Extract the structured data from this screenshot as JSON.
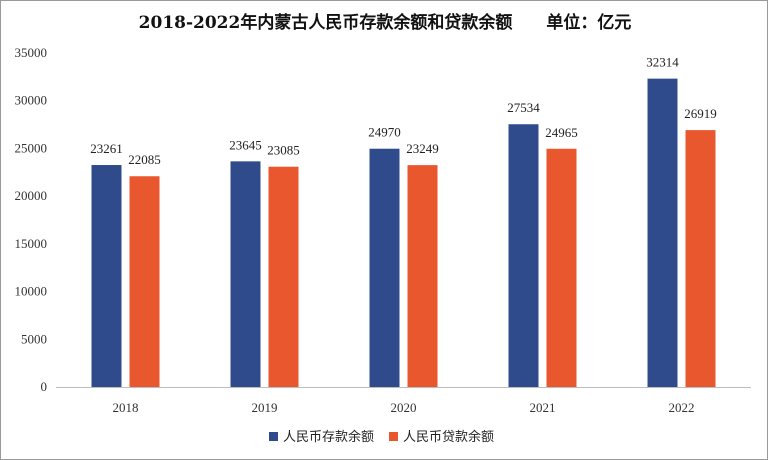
{
  "chart_data": {
    "type": "bar",
    "title": "2018-2022年内蒙古人民币存款余额和贷款余额　　单位：亿元",
    "categories": [
      "2018",
      "2019",
      "2020",
      "2021",
      "2022"
    ],
    "series": [
      {
        "name": "人民币存款余额",
        "values": [
          23261,
          23645,
          24970,
          27534,
          32314
        ],
        "color": "#2f4b8c"
      },
      {
        "name": "人民币贷款余额",
        "values": [
          22085,
          23085,
          23249,
          24965,
          26919
        ],
        "color": "#e8572e"
      }
    ],
    "ylim": [
      0,
      35000
    ],
    "yticks": [
      "0",
      "5000",
      "10000",
      "15000",
      "20000",
      "25000",
      "30000",
      "35000"
    ],
    "grid": false,
    "legend": "bottom"
  }
}
